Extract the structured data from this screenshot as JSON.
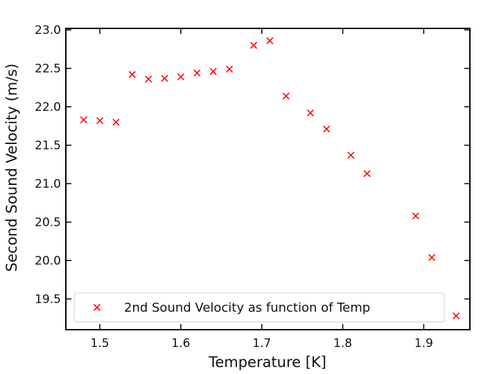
{
  "chart_data": {
    "type": "scatter",
    "xlabel": "Temperature [K]",
    "ylabel": "Second Sound Velocity (m/s)",
    "xlim": [
      1.458,
      1.957
    ],
    "ylim": [
      19.1,
      23.02
    ],
    "xticks": [
      "1.5",
      "1.6",
      "1.7",
      "1.8",
      "1.9"
    ],
    "yticks": [
      "19.5",
      "20.0",
      "20.5",
      "21.0",
      "21.5",
      "22.0",
      "22.5",
      "23.0"
    ],
    "grid": false,
    "legend_position": "lower-left",
    "marker": "x",
    "color": "#ff0000",
    "series": [
      {
        "name": "2nd Sound Velocity as function of Temp",
        "x": [
          1.48,
          1.5,
          1.52,
          1.54,
          1.56,
          1.58,
          1.6,
          1.62,
          1.64,
          1.66,
          1.69,
          1.71,
          1.73,
          1.76,
          1.78,
          1.81,
          1.83,
          1.89,
          1.91,
          1.94
        ],
        "y": [
          21.83,
          21.82,
          21.8,
          22.42,
          22.36,
          22.37,
          22.39,
          22.44,
          22.46,
          22.49,
          22.8,
          22.86,
          22.14,
          21.92,
          21.71,
          21.37,
          21.13,
          20.58,
          20.04,
          19.28
        ]
      }
    ]
  }
}
